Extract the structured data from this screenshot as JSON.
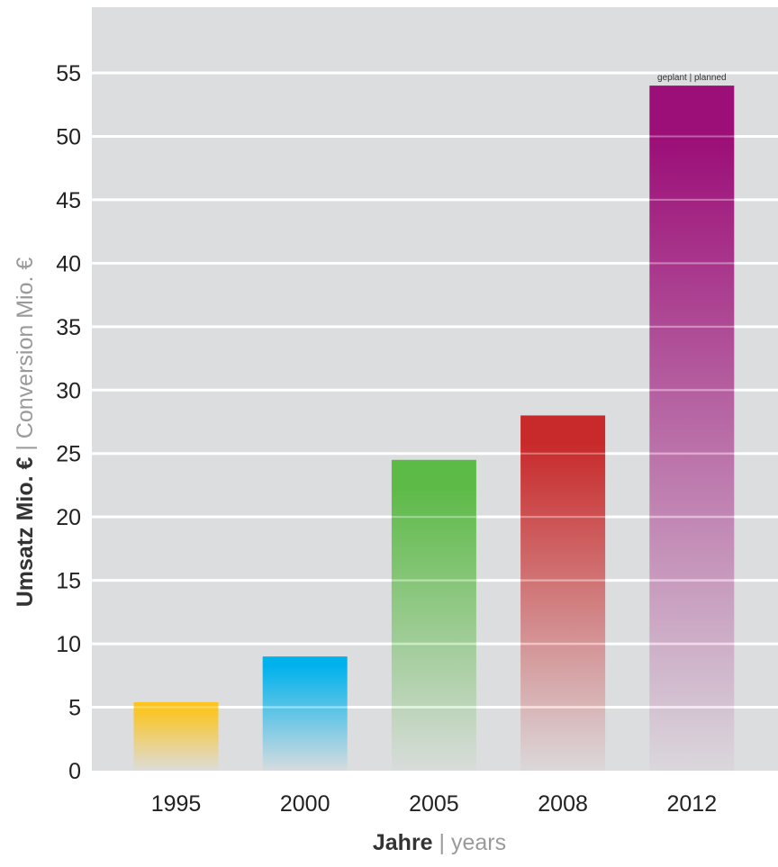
{
  "chart_data": {
    "type": "bar",
    "categories": [
      "1995",
      "2000",
      "2005",
      "2008",
      "2012"
    ],
    "values": [
      5.4,
      9,
      24.5,
      28,
      54
    ],
    "colors": [
      "#fcc41c",
      "#00b2ec",
      "#5cba46",
      "#c82a2b",
      "#9c0f78"
    ],
    "annotation": {
      "category": "2012",
      "text": "geplant | planned"
    },
    "ylabel_main": "Umsatz Mio. €",
    "ylabel_separator": " | ",
    "ylabel_sub": "Conversion Mio. €",
    "xlabel_main": "Jahre",
    "xlabel_separator": " | ",
    "xlabel_sub": "years",
    "yticks": [
      0,
      5,
      10,
      15,
      20,
      25,
      30,
      35,
      40,
      45,
      50,
      55
    ],
    "ylim": [
      0,
      57.5
    ],
    "grid": true,
    "background": "#dcdddf",
    "gridline_color": "#ffffff"
  }
}
